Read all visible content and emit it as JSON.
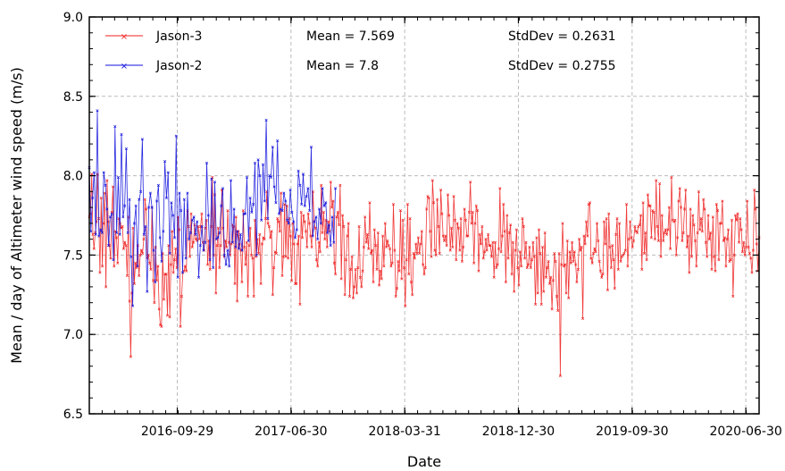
{
  "chart_data": {
    "type": "line",
    "xlabel": "Date",
    "ylabel": "Mean / day of Altimeter wind speed (m/s)",
    "xlim": [
      "2016-03-01",
      "2020-08-01"
    ],
    "ylim": [
      6.5,
      9.0
    ],
    "x_ticks": [
      "2016-09-29",
      "2017-06-30",
      "2018-03-31",
      "2018-12-30",
      "2019-09-30",
      "2020-06-30"
    ],
    "y_ticks": [
      "6.5",
      "7.0",
      "7.5",
      "8.0",
      "8.5",
      "9.0"
    ],
    "grid": true,
    "legend_position": "top-left",
    "series": [
      {
        "name": "Jason-3",
        "color": "#ee2222",
        "marker": "x",
        "x_start": "2016-03-01",
        "x_end": "2020-08-01",
        "mean": 7.569,
        "mean_label": "Mean = 7.569",
        "stddev": 0.2631,
        "stddev_label": "StdDev = 0.2631",
        "values": [
          7.74,
          7.76,
          8.01,
          7.63,
          7.54,
          7.64,
          7.71,
          8.01,
          7.73,
          7.39,
          7.86,
          7.43,
          7.7,
          7.89,
          7.3,
          7.97,
          7.71,
          7.56,
          7.48,
          7.77,
          7.93,
          7.43,
          7.65,
          7.61,
          7.45,
          7.73,
          7.7,
          7.67,
          7.68,
          7.54,
          7.58,
          7.56,
          7.37,
          7.74,
          7.21,
          6.86,
          7.26,
          7.67,
          7.32,
          7.45,
          7.42,
          7.56,
          7.37,
          7.5,
          7.53,
          7.51,
          7.6,
          7.85,
          7.79,
          7.48,
          7.5,
          7.45,
          7.41,
          7.8,
          7.34,
          7.2,
          7.55,
          7.34,
          7.43,
          7.16,
          7.06,
          7.05,
          7.51,
          7.22,
          7.38,
          7.38,
          7.12,
          7.56,
          7.11,
          7.44,
          7.65,
          7.39,
          7.47,
          7.54,
          7.42,
          7.74,
          7.66,
          7.05,
          7.24,
          7.39,
          7.4,
          7.43,
          7.4,
          7.78,
          7.68,
          7.49,
          7.76,
          7.55,
          7.58,
          7.69,
          7.6,
          7.59,
          7.68,
          7.6,
          7.68,
          7.76,
          7.58,
          7.53,
          7.67,
          7.72,
          7.44,
          7.59,
          7.41,
          7.68,
          7.99,
          7.5,
          7.88,
          7.26,
          7.56,
          7.67,
          7.42,
          7.56,
          7.91,
          7.67,
          7.49,
          7.59,
          7.55,
          7.78,
          7.58,
          7.5,
          7.57,
          7.69,
          7.68,
          7.32,
          7.74,
          7.21,
          7.65,
          7.57,
          7.53,
          7.33,
          7.78,
          7.55,
          7.44,
          7.58,
          7.24,
          7.56,
          7.67,
          7.5,
          7.48,
          7.24,
          7.72,
          7.49,
          7.6,
          7.51,
          7.63,
          7.32,
          7.57,
          7.61,
          7.6,
          7.73,
          7.9,
          7.7,
          7.68,
          7.61,
          7.65,
          7.25,
          7.42,
          7.52,
          7.51,
          7.73,
          7.71,
          7.65,
          7.89,
          7.37,
          7.49,
          7.82,
          7.49,
          7.81,
          7.48,
          7.73,
          7.62,
          7.34,
          7.7,
          7.57,
          7.32,
          7.32,
          7.57,
          7.62,
          7.19,
          7.77,
          7.61,
          7.75,
          7.71,
          7.65,
          7.55,
          7.76,
          7.7,
          7.62,
          7.55,
          7.9,
          7.71,
          7.67,
          7.47,
          7.43,
          7.58,
          7.52,
          7.94,
          7.64,
          7.77,
          7.6,
          7.72,
          7.55,
          7.71,
          7.65,
          7.96,
          7.8,
          7.84,
          7.45,
          7.38,
          7.74,
          7.77,
          7.69,
          7.94,
          7.35,
          7.75,
          7.68,
          7.25,
          7.47,
          7.62,
          7.7,
          7.24,
          7.41,
          7.49,
          7.23,
          7.3,
          7.41,
          7.26,
          7.42,
          7.68,
          7.36,
          7.3,
          7.4,
          7.55,
          7.74,
          7.58,
          7.63,
          7.54,
          7.83,
          7.51,
          7.53,
          7.33,
          7.66,
          7.56,
          7.41,
          7.64,
          7.31,
          7.4,
          7.35,
          7.62,
          7.43,
          7.7,
          7.55,
          7.59,
          7.56,
          7.54,
          7.43,
          7.45,
          7.82,
          7.53,
          7.24,
          7.29,
          7.46,
          7.4,
          7.78,
          7.35,
          7.72,
          7.42,
          7.18,
          7.47,
          7.82,
          7.38,
          7.73,
          7.33,
          7.25,
          7.51,
          7.48,
          7.57,
          7.51,
          7.61,
          7.51,
          7.57,
          7.65,
          7.44,
          7.38,
          7.42,
          7.79,
          7.87,
          7.86,
          7.65,
          7.49,
          7.97,
          7.83,
          7.53,
          7.5,
          7.85,
          7.68,
          7.51,
          7.91,
          7.76,
          7.62,
          7.59,
          7.62,
          7.56,
          7.88,
          7.75,
          7.53,
          7.67,
          7.55,
          7.87,
          7.72,
          7.47,
          7.7,
          7.67,
          7.53,
          7.73,
          7.46,
          7.55,
          7.79,
          7.72,
          7.62,
          7.62,
          7.77,
          7.96,
          7.7,
          7.77,
          7.45,
          7.7,
          7.81,
          7.78,
          7.4,
          7.63,
          7.57,
          7.68,
          7.48,
          7.52,
          7.6,
          7.53,
          7.63,
          7.56,
          7.56,
          7.49,
          7.58,
          7.36,
          7.58,
          7.42,
          7.44,
          7.54,
          7.92,
          7.52,
          7.62,
          7.82,
          7.65,
          7.33,
          7.75,
          7.48,
          7.64,
          7.69,
          7.38,
          7.58,
          7.27,
          7.53,
          7.66,
          7.42,
          7.31,
          7.52,
          7.43,
          7.73,
          7.68,
          7.48,
          7.58,
          7.42,
          7.44,
          7.55,
          7.42,
          7.47,
          7.58,
          7.49,
          7.19,
          7.61,
          7.26,
          7.66,
          7.51,
          7.19,
          7.55,
          7.27,
          7.64,
          7.36,
          7.42,
          7.46,
          7.32,
          7.36,
          7.16,
          7.34,
          7.51,
          7.46,
          7.24,
          7.15,
          7.51,
          6.74,
          7.44,
          7.7,
          7.43,
          7.44,
          7.26,
          7.59,
          7.23,
          7.52,
          7.45,
          7.58,
          7.46,
          7.52,
          7.44,
          7.33,
          7.41,
          7.6,
          7.53,
          7.55,
          7.1,
          7.62,
          7.57,
          7.71,
          7.62,
          7.82,
          7.83,
          7.48,
          7.45,
          7.51,
          7.54,
          7.52,
          7.7,
          7.59,
          7.46,
          7.4,
          7.36,
          7.38,
          7.71,
          7.57,
          7.73,
          7.28,
          7.76,
          7.55,
          7.42,
          7.56,
          7.47,
          7.29,
          7.63,
          7.73,
          7.41,
          7.7,
          7.46,
          7.49,
          7.5,
          7.51,
          7.53,
          7.82,
          7.43,
          7.6,
          7.71,
          7.61,
          7.55,
          7.59,
          7.68,
          7.65,
          7.64,
          7.68,
          7.69,
          7.75,
          7.41,
          7.83,
          7.51,
          7.64,
          7.47,
          7.88,
          7.81,
          7.81,
          7.61,
          7.78,
          7.77,
          7.6,
          7.97,
          7.68,
          7.59,
          7.95,
          7.49,
          7.75,
          7.59,
          7.64,
          7.66,
          7.63,
          7.66,
          7.8,
          7.54,
          7.99,
          7.72,
          7.71,
          7.72,
          7.5,
          7.61,
          7.84,
          7.92,
          7.8,
          7.59,
          7.64,
          7.79,
          7.91,
          7.55,
          7.62,
          7.39,
          7.79,
          7.49,
          7.75,
          7.69,
          7.59,
          7.43,
          7.64,
          7.9,
          7.66,
          7.73,
          7.65,
          7.85,
          7.79,
          7.58,
          7.49,
          7.75,
          7.6,
          7.64,
          7.41,
          7.74,
          7.49,
          7.4,
          7.82,
          7.78,
          7.47,
          7.7,
          7.7,
          7.84,
          7.59,
          7.61,
          7.43,
          7.6,
          7.66,
          7.46,
          7.47,
          7.72,
          7.24,
          7.5,
          7.75,
          7.72,
          7.76,
          7.58,
          7.73,
          7.66,
          7.52,
          7.58,
          7.5,
          7.55,
          7.84,
          7.55,
          7.51,
          7.48,
          7.39,
          7.53,
          7.91,
          7.79,
          7.57,
          7.4,
          7.61
        ]
      },
      {
        "name": "Jason-2",
        "color": "#1111dd",
        "marker": "x",
        "x_start": "2016-03-01",
        "x_end": "2017-10-15",
        "mean": 7.8,
        "mean_label": "Mean = 7.8",
        "stddev": 0.2755,
        "stddev_label": "StdDev = 0.2755",
        "values": [
          8.05,
          7.65,
          7.86,
          8.02,
          7.63,
          8.41,
          7.62,
          7.66,
          7.64,
          8.02,
          7.94,
          7.79,
          7.56,
          7.74,
          7.76,
          7.47,
          8.31,
          7.64,
          7.99,
          7.63,
          8.26,
          7.74,
          7.81,
          8.17,
          7.64,
          7.85,
          7.49,
          7.18,
          7.7,
          7.81,
          7.43,
          7.85,
          7.9,
          8.23,
          7.63,
          7.68,
          7.27,
          7.8,
          7.89,
          7.8,
          7.53,
          7.33,
          7.84,
          7.94,
          7.61,
          7.46,
          7.65,
          8.09,
          7.86,
          8.02,
          7.51,
          7.83,
          7.75,
          7.61,
          8.25,
          7.36,
          7.89,
          7.78,
          7.39,
          7.85,
          7.48,
          7.89,
          7.6,
          7.64,
          7.72,
          7.74,
          7.63,
          7.71,
          7.36,
          7.56,
          7.68,
          7.53,
          7.58,
          8.08,
          7.75,
          7.47,
          7.98,
          7.42,
          7.96,
          7.6,
          7.61,
          7.64,
          7.81,
          7.92,
          7.5,
          7.44,
          7.53,
          7.43,
          7.97,
          7.58,
          7.79,
          7.55,
          7.65,
          7.54,
          7.63,
          7.53,
          7.76,
          7.76,
          7.99,
          7.59,
          7.86,
          7.77,
          7.82,
          8.08,
          7.5,
          8.1,
          8.0,
          7.72,
          8.07,
          7.84,
          8.35,
          7.73,
          8.0,
          7.99,
          8.18,
          7.93,
          7.83,
          8.22,
          7.76,
          7.79,
          7.78,
          7.89,
          7.84,
          7.72,
          7.7,
          7.91,
          7.77,
          7.71,
          7.61,
          7.66,
          8.03,
          7.94,
          7.82,
          8.01,
          7.81,
          7.87,
          7.92,
          7.78,
          8.18,
          7.62,
          7.71,
          7.74,
          7.6,
          7.79,
          7.7,
          7.92,
          7.81,
          7.83,
          7.64,
          7.69,
          7.56,
          7.74,
          7.58,
          7.92
        ]
      }
    ]
  }
}
